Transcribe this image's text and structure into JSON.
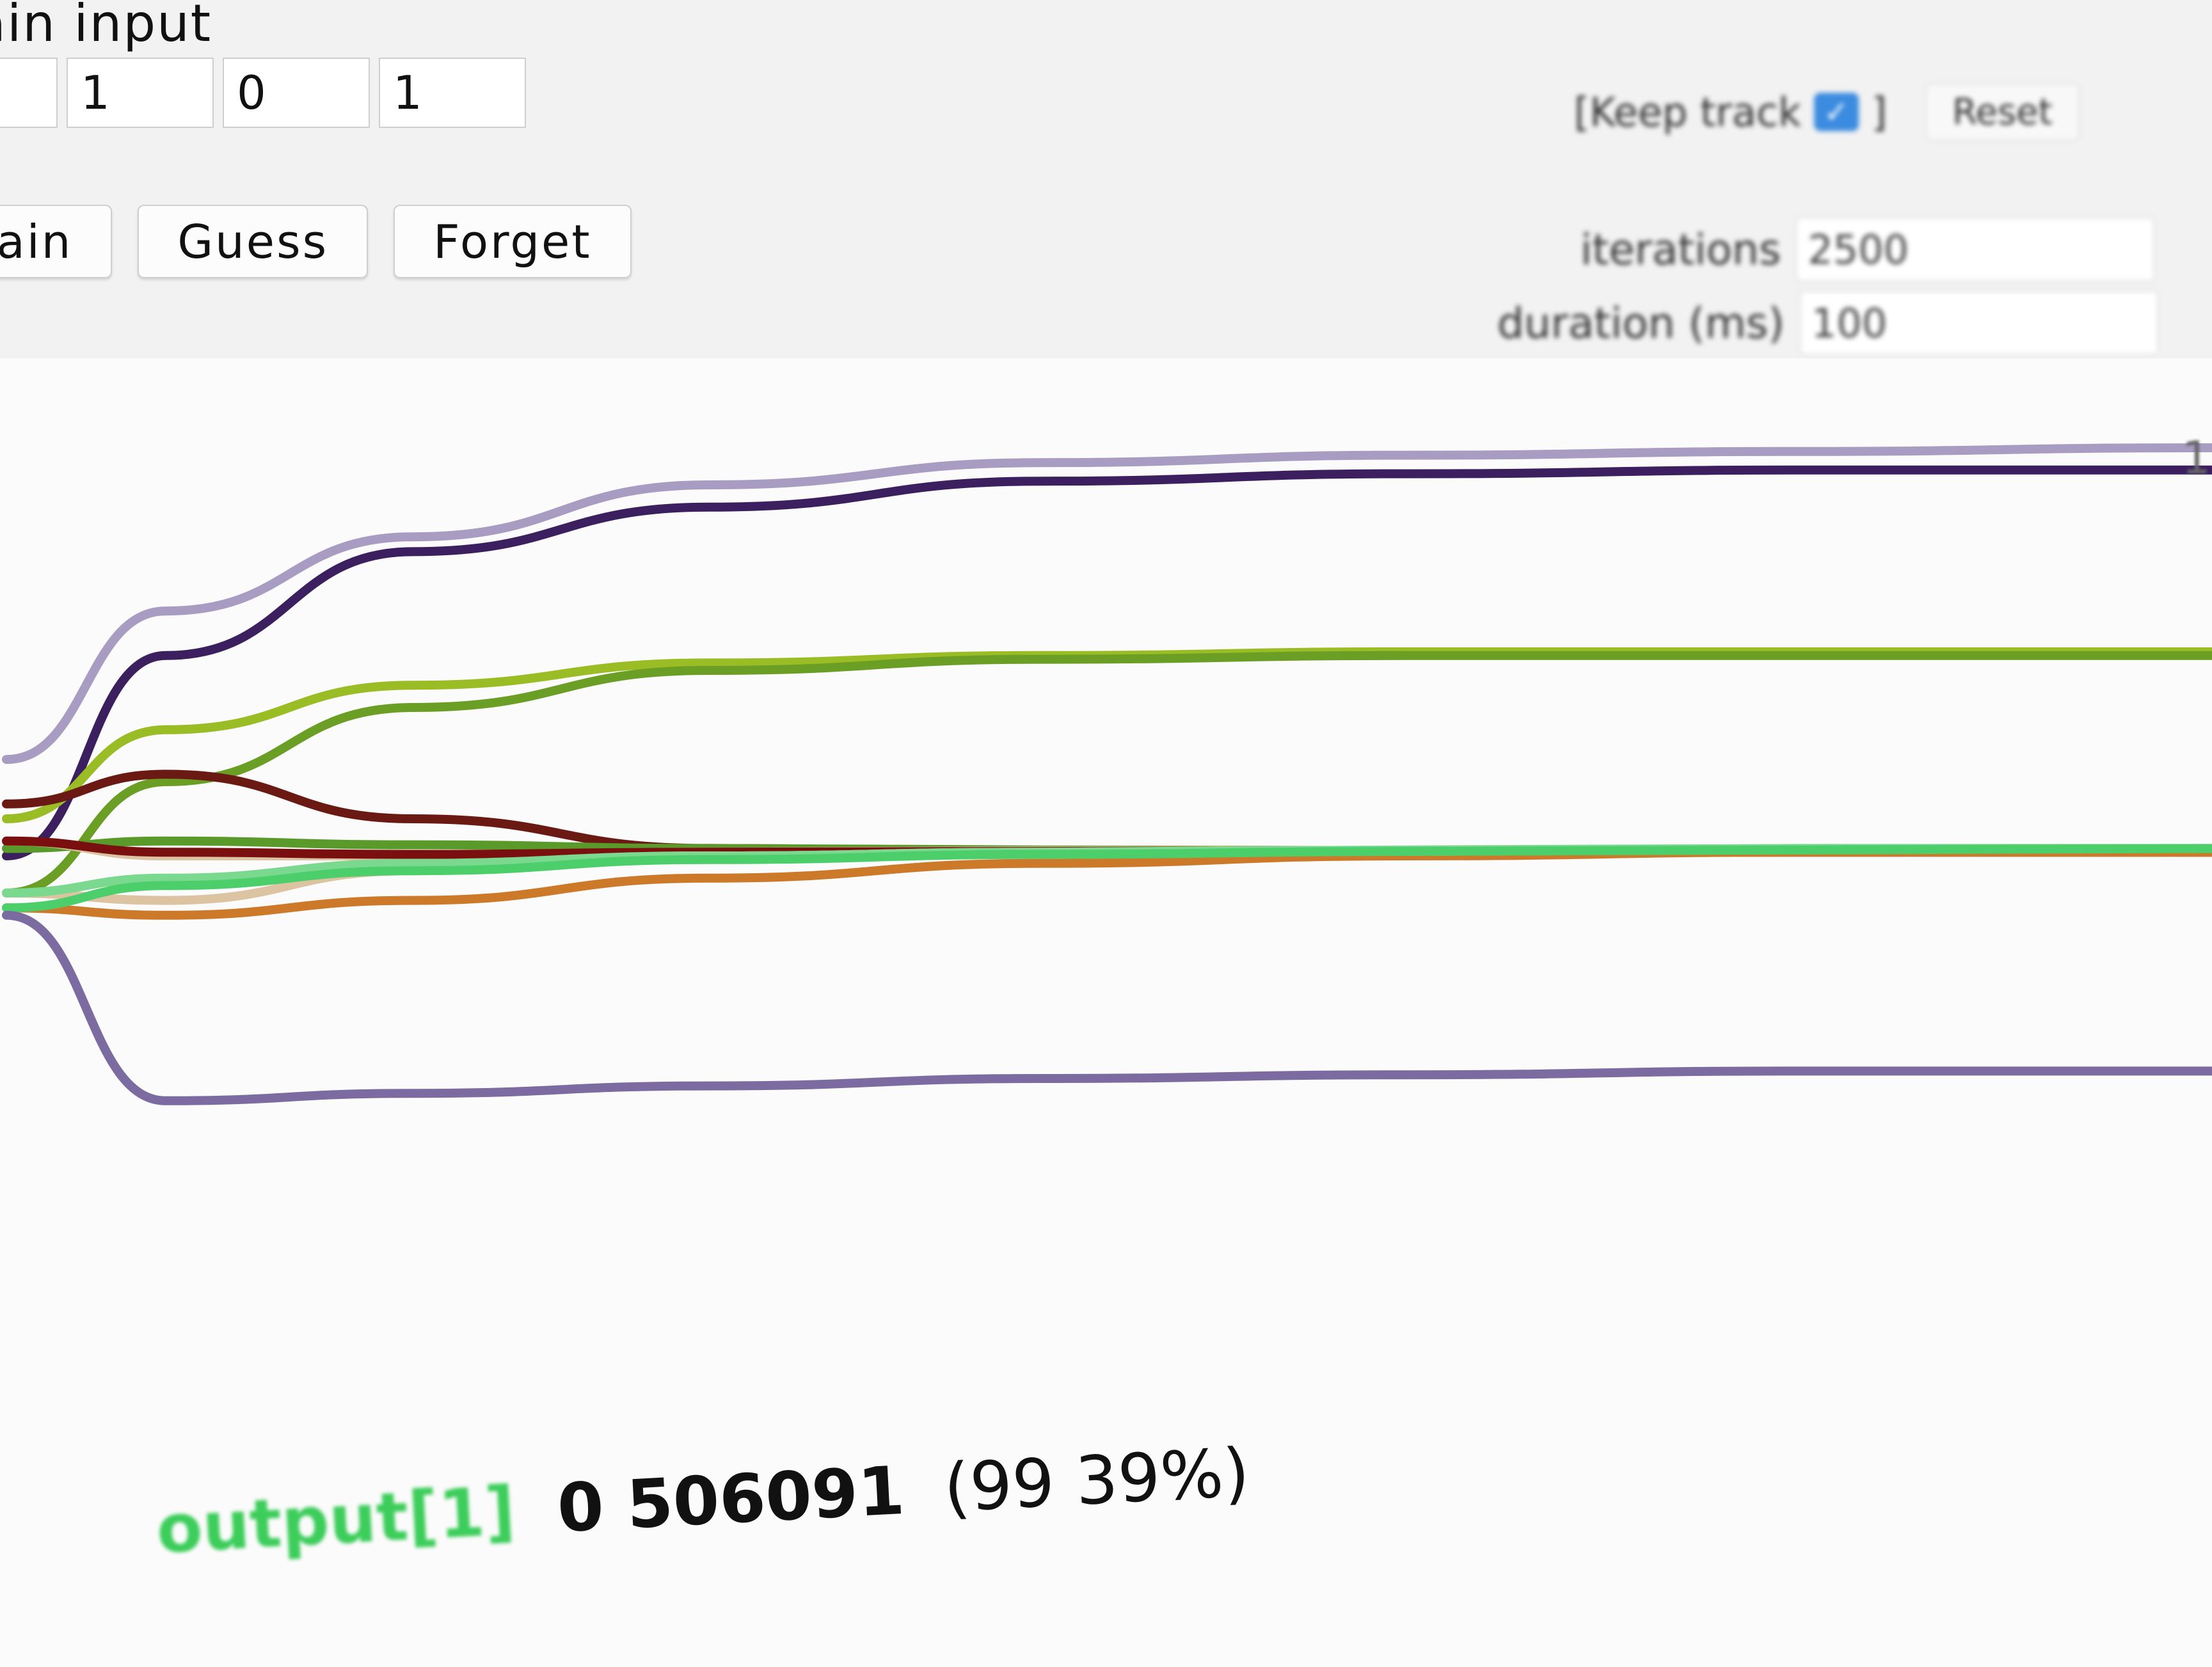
{
  "controls": {
    "title": "ain input",
    "inputs": [
      "",
      "1",
      "0",
      "1"
    ],
    "buttons": {
      "train": "rain",
      "guess": "Guess",
      "forget": "Forget"
    },
    "keep_track_label": "[Keep track",
    "keep_track_close": "]",
    "keep_track_checked": true,
    "reset_label": "Reset",
    "iterations_label": "iterations",
    "iterations_value": "2500",
    "duration_label": "duration (ms)",
    "duration_value": "100"
  },
  "chart_data": {
    "type": "line",
    "series": [
      {
        "color": "#a89cc2",
        "values": [
          0.58,
          0.78,
          0.88,
          0.95,
          0.98,
          0.99,
          0.995,
          1.0
        ]
      },
      {
        "color": "#3c1f5e",
        "values": [
          0.45,
          0.72,
          0.86,
          0.92,
          0.955,
          0.965,
          0.97,
          0.97
        ]
      },
      {
        "color": "#9abc24",
        "values": [
          0.5,
          0.62,
          0.68,
          0.71,
          0.72,
          0.725,
          0.725,
          0.725
        ]
      },
      {
        "color": "#6a9e24",
        "values": [
          0.4,
          0.55,
          0.65,
          0.7,
          0.715,
          0.72,
          0.72,
          0.72
        ]
      },
      {
        "color": "#6a1a12",
        "values": [
          0.52,
          0.56,
          0.5,
          0.46,
          0.455,
          0.455,
          0.455,
          0.455
        ]
      },
      {
        "color": "#5a9a2a",
        "values": [
          0.46,
          0.47,
          0.465,
          0.46,
          0.458,
          0.457,
          0.457,
          0.457
        ]
      },
      {
        "color": "#dcc3a2",
        "values": [
          0.47,
          0.45,
          0.45,
          0.455,
          0.457,
          0.457,
          0.457,
          0.457
        ]
      },
      {
        "color": "#7a0f0f",
        "values": [
          0.47,
          0.455,
          0.452,
          0.455,
          0.456,
          0.457,
          0.457,
          0.457
        ]
      },
      {
        "color": "#dcc3a2",
        "values": [
          0.4,
          0.39,
          0.43,
          0.45,
          0.455,
          0.457,
          0.457,
          0.457
        ]
      },
      {
        "color": "#7bd88f",
        "values": [
          0.4,
          0.42,
          0.44,
          0.45,
          0.455,
          0.458,
          0.46,
          0.46
        ]
      },
      {
        "color": "#cc7a2a",
        "values": [
          0.38,
          0.37,
          0.39,
          0.42,
          0.44,
          0.45,
          0.455,
          0.455
        ]
      },
      {
        "color": "#4ccf6a",
        "values": [
          0.38,
          0.41,
          0.43,
          0.445,
          0.452,
          0.456,
          0.458,
          0.46
        ]
      },
      {
        "color": "#7b6ba0",
        "values": [
          0.37,
          0.12,
          0.13,
          0.14,
          0.15,
          0.155,
          0.16,
          0.16
        ]
      }
    ],
    "end_label": "1",
    "ylim": [
      0,
      1
    ]
  },
  "output": {
    "label": "output[1]",
    "value": "0 506091",
    "percent": "(99 39%)"
  }
}
